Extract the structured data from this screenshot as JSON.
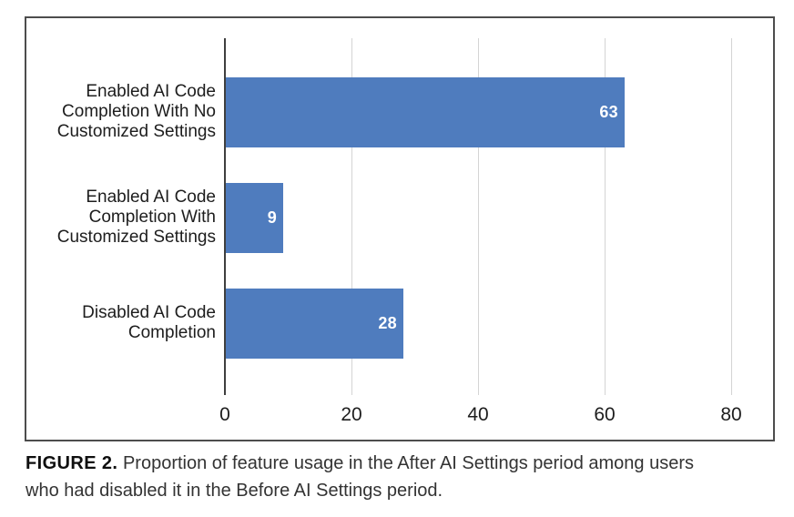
{
  "caption": {
    "label": "FIGURE 2.",
    "line1": " Proportion of feature usage in the After AI Settings period among users",
    "line2": "who had disabled it in the Before AI Settings period."
  },
  "chart_data": {
    "type": "bar",
    "orientation": "horizontal",
    "title": "",
    "xlabel": "",
    "ylabel": "",
    "categories": [
      "Enabled AI Code Completion With No Customized Settings",
      "Enabled AI Code Completion With Customized Settings",
      "Disabled AI Code Completion"
    ],
    "category_lines": [
      [
        "Enabled AI Code",
        "Completion With No",
        "Customized Settings"
      ],
      [
        "Enabled AI Code",
        "Completion With",
        "Customized Settings"
      ],
      [
        "Disabled AI Code",
        "Completion"
      ]
    ],
    "values": [
      63,
      9,
      28
    ],
    "x_ticks": [
      0,
      20,
      40,
      60,
      80
    ],
    "xlim": [
      0,
      87
    ],
    "grid": true,
    "legend": false,
    "bar_color": "#4f7cbe",
    "value_label_color": "#ffffff",
    "axis_line_color": "#3f3f3f",
    "gridline_color": "#d4d4d4",
    "panel_border_color": "#4d4d4d"
  }
}
